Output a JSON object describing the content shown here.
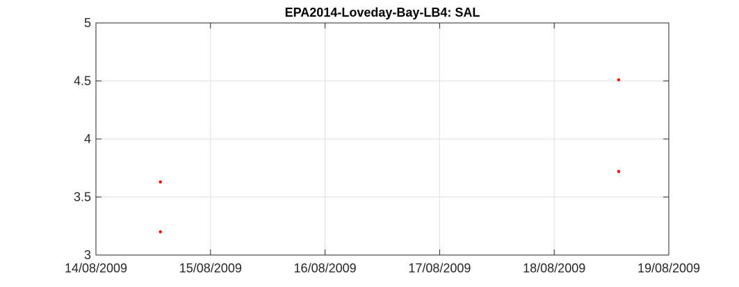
{
  "chart_data": {
    "type": "scatter",
    "title": "EPA2014-Loveday-Bay-LB4: SAL",
    "xlabel": "",
    "ylabel": "",
    "x_type": "date",
    "xlim": [
      "14/08/2009",
      "19/08/2009"
    ],
    "ylim": [
      3,
      5
    ],
    "x_ticks": [
      "14/08/2009",
      "15/08/2009",
      "16/08/2009",
      "17/08/2009",
      "18/08/2009",
      "19/08/2009"
    ],
    "y_ticks": [
      "3",
      "3.5",
      "4",
      "4.5",
      "5"
    ],
    "grid": true,
    "legend": "none",
    "series": [
      {
        "color": "#ff0000",
        "points": [
          {
            "x": "14/08/2009 13:30",
            "y": 3.63
          },
          {
            "x": "14/08/2009 13:30",
            "y": 3.2
          },
          {
            "x": "18/08/2009 13:30",
            "y": 4.51
          },
          {
            "x": "18/08/2009 13:30",
            "y": 3.72
          }
        ]
      }
    ]
  }
}
